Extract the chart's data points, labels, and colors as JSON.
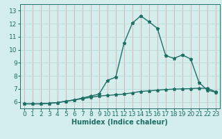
{
  "xlabel": "Humidex (Indice chaleur)",
  "bg_color": "#d4eeed",
  "grid_color": "#b8d4d4",
  "line_color": "#1e6e64",
  "x": [
    0,
    1,
    2,
    3,
    4,
    5,
    6,
    7,
    8,
    9,
    10,
    11,
    12,
    13,
    14,
    15,
    16,
    17,
    18,
    19,
    20,
    21,
    22,
    23
  ],
  "y_top": [
    5.85,
    5.85,
    5.85,
    5.9,
    5.95,
    6.05,
    6.15,
    6.3,
    6.45,
    6.6,
    7.65,
    7.9,
    10.5,
    12.05,
    12.6,
    12.15,
    11.65,
    9.55,
    9.35,
    9.6,
    9.3,
    7.5,
    6.9,
    6.75
  ],
  "y_bot": [
    5.85,
    5.85,
    5.85,
    5.9,
    5.95,
    6.05,
    6.15,
    6.25,
    6.35,
    6.45,
    6.5,
    6.55,
    6.6,
    6.7,
    6.8,
    6.85,
    6.9,
    6.95,
    6.98,
    7.0,
    7.02,
    7.05,
    7.05,
    6.78
  ],
  "ylim": [
    5.5,
    13.5
  ],
  "xlim": [
    -0.5,
    23.5
  ],
  "yticks": [
    6,
    7,
    8,
    9,
    10,
    11,
    12,
    13
  ],
  "xticks": [
    0,
    1,
    2,
    3,
    4,
    5,
    6,
    7,
    8,
    9,
    10,
    11,
    12,
    13,
    14,
    15,
    16,
    17,
    18,
    19,
    20,
    21,
    22,
    23
  ],
  "markersize": 3.5,
  "linewidth": 1.0,
  "xlabel_fontsize": 7,
  "tick_fontsize": 6.5
}
